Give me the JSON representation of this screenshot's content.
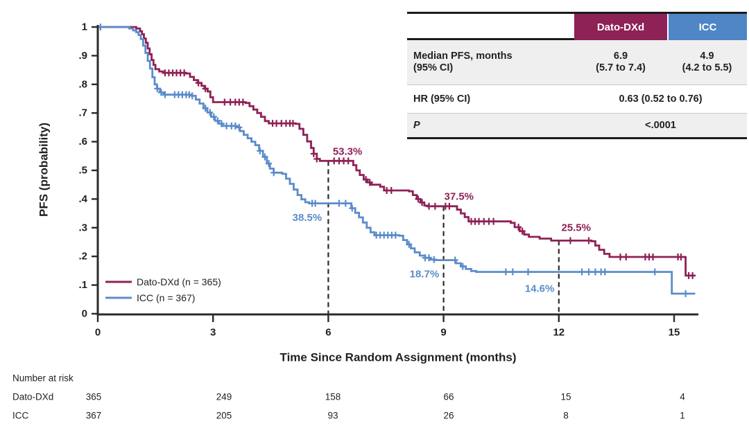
{
  "colors": {
    "dato": "#8E2156",
    "icc_curve": "#5B8CC9",
    "icc_header": "#4E86C6",
    "axis": "#2B2B2B",
    "text": "#231F20",
    "table_row_gray": "#EFEFEF",
    "table_border_black": "#1A1A1A",
    "table_separator": "#C9C9C9"
  },
  "chart_data": {
    "type": "line",
    "subtype": "kaplan-meier-step",
    "title": "",
    "xlabel": "Time Since Random Assignment (months)",
    "ylabel": "PFS (probability)",
    "xlim": [
      0,
      15.6
    ],
    "ylim": [
      0,
      1
    ],
    "xticks": [
      0,
      3,
      6,
      9,
      12,
      15
    ],
    "yticks": [
      0,
      0.1,
      0.2,
      0.3,
      0.4,
      0.5,
      0.6,
      0.7,
      0.8,
      0.9,
      1
    ],
    "ytick_labels": [
      "0",
      ".1",
      ".2",
      ".3",
      ".4",
      ".5",
      ".6",
      ".7",
      ".8",
      ".9",
      "1"
    ],
    "grid": false,
    "legend_position": "inside-lower-left",
    "series": [
      {
        "name": "Dato-DXd",
        "legend_label": "Dato-DXd (n = 365)",
        "n": 365,
        "color": "#8E2156",
        "steps": [
          [
            0,
            1
          ],
          [
            0.9,
            1
          ],
          [
            1.0,
            0.995
          ],
          [
            1.1,
            0.985
          ],
          [
            1.15,
            0.975
          ],
          [
            1.2,
            0.96
          ],
          [
            1.25,
            0.945
          ],
          [
            1.3,
            0.925
          ],
          [
            1.35,
            0.905
          ],
          [
            1.4,
            0.885
          ],
          [
            1.45,
            0.868
          ],
          [
            1.5,
            0.853
          ],
          [
            1.6,
            0.845
          ],
          [
            1.7,
            0.84
          ],
          [
            2.3,
            0.838
          ],
          [
            2.4,
            0.826
          ],
          [
            2.5,
            0.815
          ],
          [
            2.6,
            0.805
          ],
          [
            2.7,
            0.795
          ],
          [
            2.78,
            0.785
          ],
          [
            2.86,
            0.775
          ],
          [
            2.93,
            0.755
          ],
          [
            3.0,
            0.738
          ],
          [
            3.85,
            0.735
          ],
          [
            3.95,
            0.724
          ],
          [
            4.05,
            0.712
          ],
          [
            4.15,
            0.7
          ],
          [
            4.25,
            0.687
          ],
          [
            4.35,
            0.672
          ],
          [
            4.45,
            0.664
          ],
          [
            5.15,
            0.662
          ],
          [
            5.25,
            0.645
          ],
          [
            5.35,
            0.624
          ],
          [
            5.45,
            0.601
          ],
          [
            5.55,
            0.578
          ],
          [
            5.62,
            0.558
          ],
          [
            5.7,
            0.54
          ],
          [
            5.78,
            0.533
          ],
          [
            6.55,
            0.533
          ],
          [
            6.65,
            0.518
          ],
          [
            6.73,
            0.5
          ],
          [
            6.82,
            0.484
          ],
          [
            6.92,
            0.468
          ],
          [
            7.02,
            0.458
          ],
          [
            7.12,
            0.45
          ],
          [
            7.35,
            0.443
          ],
          [
            7.45,
            0.43
          ],
          [
            8.1,
            0.427
          ],
          [
            8.2,
            0.414
          ],
          [
            8.3,
            0.4
          ],
          [
            8.4,
            0.388
          ],
          [
            8.5,
            0.377
          ],
          [
            8.58,
            0.375
          ],
          [
            9.25,
            0.375
          ],
          [
            9.35,
            0.363
          ],
          [
            9.45,
            0.35
          ],
          [
            9.55,
            0.337
          ],
          [
            9.65,
            0.322
          ],
          [
            10.75,
            0.317
          ],
          [
            10.85,
            0.302
          ],
          [
            10.98,
            0.288
          ],
          [
            11.1,
            0.276
          ],
          [
            11.22,
            0.268
          ],
          [
            11.5,
            0.262
          ],
          [
            11.8,
            0.255
          ],
          [
            12.85,
            0.253
          ],
          [
            12.95,
            0.238
          ],
          [
            13.05,
            0.223
          ],
          [
            13.18,
            0.209
          ],
          [
            13.32,
            0.198
          ],
          [
            15.28,
            0.197
          ],
          [
            15.3,
            0.133
          ],
          [
            15.55,
            0.133
          ]
        ],
        "censor_months": [
          1.75,
          1.85,
          1.95,
          2.05,
          2.15,
          2.25,
          2.62,
          2.8,
          3.3,
          3.45,
          3.58,
          3.68,
          3.78,
          4.55,
          4.65,
          4.78,
          4.9,
          5.0,
          5.08,
          5.62,
          5.7,
          6.15,
          6.28,
          6.4,
          6.52,
          6.98,
          7.08,
          7.52,
          7.64,
          8.34,
          8.44,
          8.62,
          8.78,
          9.05,
          9.15,
          9.72,
          9.82,
          9.92,
          10.05,
          10.18,
          10.3,
          10.95,
          11.05,
          12.3,
          12.78,
          13.6,
          13.75,
          14.25,
          14.35,
          14.45,
          15.1,
          15.18,
          15.38,
          15.48
        ],
        "landmark_values": {
          "6": "53.3%",
          "9": "37.5%",
          "12": "25.5%"
        },
        "median_pfs": "6.9 (5.7 to 7.4)"
      },
      {
        "name": "ICC",
        "legend_label": "ICC (n = 367)",
        "n": 367,
        "color": "#5B8CC9",
        "steps": [
          [
            0,
            1
          ],
          [
            0.7,
            1
          ],
          [
            0.82,
            0.995
          ],
          [
            0.92,
            0.988
          ],
          [
            1.0,
            0.982
          ],
          [
            1.06,
            0.972
          ],
          [
            1.12,
            0.958
          ],
          [
            1.18,
            0.935
          ],
          [
            1.24,
            0.91
          ],
          [
            1.3,
            0.882
          ],
          [
            1.36,
            0.855
          ],
          [
            1.42,
            0.825
          ],
          [
            1.48,
            0.8
          ],
          [
            1.54,
            0.785
          ],
          [
            1.62,
            0.772
          ],
          [
            1.72,
            0.764
          ],
          [
            2.45,
            0.76
          ],
          [
            2.55,
            0.747
          ],
          [
            2.65,
            0.733
          ],
          [
            2.75,
            0.717
          ],
          [
            2.85,
            0.702
          ],
          [
            2.95,
            0.687
          ],
          [
            3.05,
            0.673
          ],
          [
            3.15,
            0.663
          ],
          [
            3.25,
            0.655
          ],
          [
            3.6,
            0.65
          ],
          [
            3.7,
            0.637
          ],
          [
            3.8,
            0.624
          ],
          [
            3.9,
            0.612
          ],
          [
            4.0,
            0.6
          ],
          [
            4.1,
            0.588
          ],
          [
            4.2,
            0.568
          ],
          [
            4.3,
            0.547
          ],
          [
            4.4,
            0.524
          ],
          [
            4.48,
            0.506
          ],
          [
            4.58,
            0.492
          ],
          [
            4.8,
            0.488
          ],
          [
            4.9,
            0.471
          ],
          [
            5.0,
            0.453
          ],
          [
            5.1,
            0.433
          ],
          [
            5.2,
            0.414
          ],
          [
            5.3,
            0.399
          ],
          [
            5.4,
            0.389
          ],
          [
            5.5,
            0.385
          ],
          [
            6.5,
            0.385
          ],
          [
            6.6,
            0.368
          ],
          [
            6.7,
            0.352
          ],
          [
            6.8,
            0.336
          ],
          [
            6.9,
            0.318
          ],
          [
            7.0,
            0.3
          ],
          [
            7.1,
            0.284
          ],
          [
            7.2,
            0.274
          ],
          [
            7.85,
            0.272
          ],
          [
            7.95,
            0.257
          ],
          [
            8.05,
            0.242
          ],
          [
            8.15,
            0.228
          ],
          [
            8.25,
            0.214
          ],
          [
            8.38,
            0.203
          ],
          [
            8.52,
            0.195
          ],
          [
            8.65,
            0.189
          ],
          [
            8.78,
            0.187
          ],
          [
            9.2,
            0.187
          ],
          [
            9.32,
            0.176
          ],
          [
            9.45,
            0.165
          ],
          [
            9.58,
            0.156
          ],
          [
            9.72,
            0.149
          ],
          [
            9.85,
            0.146
          ],
          [
            14.9,
            0.146
          ],
          [
            14.94,
            0.07
          ],
          [
            15.55,
            0.07
          ]
        ],
        "censor_months": [
          0.07,
          1.55,
          1.65,
          1.75,
          2.0,
          2.1,
          2.2,
          2.3,
          2.38,
          2.46,
          2.8,
          2.92,
          3.02,
          3.12,
          3.22,
          3.35,
          3.48,
          3.58,
          3.68,
          4.22,
          4.35,
          4.45,
          4.58,
          5.58,
          5.66,
          6.28,
          6.45,
          6.62,
          7.25,
          7.35,
          7.45,
          7.55,
          7.65,
          7.75,
          8.1,
          8.52,
          8.62,
          8.75,
          9.3,
          9.5,
          10.62,
          10.8,
          11.2,
          12.6,
          12.78,
          12.95,
          13.1,
          13.2,
          14.5,
          15.3
        ],
        "landmark_values": {
          "6": "38.5%",
          "9": "18.7%",
          "12": "14.6%"
        },
        "median_pfs": "4.9 (4.2 to 5.5)"
      }
    ],
    "landmark_lines": [
      {
        "month": 6,
        "top_prob": 0.533
      },
      {
        "month": 9,
        "top_prob": 0.375
      },
      {
        "month": 12,
        "top_prob": 0.255
      }
    ],
    "annotations": [
      {
        "text": "53.3%",
        "series": "Dato-DXd",
        "month": 6.5,
        "prob": 0.565
      },
      {
        "text": "38.5%",
        "series": "ICC",
        "month": 5.45,
        "prob": 0.335
      },
      {
        "text": "37.5%",
        "series": "Dato-DXd",
        "month": 9.4,
        "prob": 0.408
      },
      {
        "text": "18.7%",
        "series": "ICC",
        "month": 8.5,
        "prob": 0.138
      },
      {
        "text": "25.5%",
        "series": "Dato-DXd",
        "month": 12.45,
        "prob": 0.3
      },
      {
        "text": "14.6%",
        "series": "ICC",
        "month": 11.5,
        "prob": 0.087
      }
    ]
  },
  "summary_table": {
    "col_dato": "Dato-DXd",
    "col_icc": "ICC",
    "row1_label1": "Median PFS, months",
    "row1_label2": "(95% CI)",
    "row1_dato1": "6.9",
    "row1_dato2": "(5.7 to 7.4)",
    "row1_icc1": "4.9",
    "row1_icc2": "(4.2 to 5.5)",
    "row2_label": "HR (95% CI)",
    "row2_value": "0.63 (0.52 to 0.76)",
    "row3_label": "P",
    "row3_value": "<.0001"
  },
  "legend": {
    "items": [
      {
        "label": "Dato-DXd (n = 365)"
      },
      {
        "label": "ICC (n = 367)"
      }
    ]
  },
  "risk_table": {
    "title": "Number at risk",
    "rows": [
      {
        "label": "Dato-DXd",
        "values": [
          "365",
          "249",
          "158",
          "66",
          "15",
          "4"
        ]
      },
      {
        "label": "ICC",
        "values": [
          "367",
          "205",
          "93",
          "26",
          "8",
          "1"
        ]
      }
    ]
  }
}
